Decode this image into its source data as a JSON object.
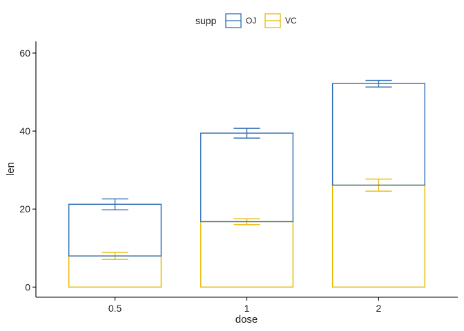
{
  "chart_data": {
    "type": "bar",
    "stacked": true,
    "categories": [
      "0.5",
      "1",
      "2"
    ],
    "xlabel": "dose",
    "ylabel": "len",
    "ylim": [
      -2.6,
      63
    ],
    "yticks": [
      0,
      20,
      40,
      60
    ],
    "legend": {
      "title": "supp",
      "position": "top"
    },
    "series": [
      {
        "name": "VC",
        "color": "#E7B800",
        "values": [
          7.98,
          16.77,
          26.14
        ],
        "error_low": [
          7.1,
          16.0,
          24.6
        ],
        "error_high": [
          8.9,
          17.5,
          27.7
        ]
      },
      {
        "name": "OJ",
        "color": "#2E6DB4",
        "values": [
          13.25,
          22.7,
          26.06
        ],
        "error_low": [
          19.8,
          38.2,
          51.3
        ],
        "error_high": [
          22.6,
          40.7,
          53.0
        ]
      }
    ]
  }
}
